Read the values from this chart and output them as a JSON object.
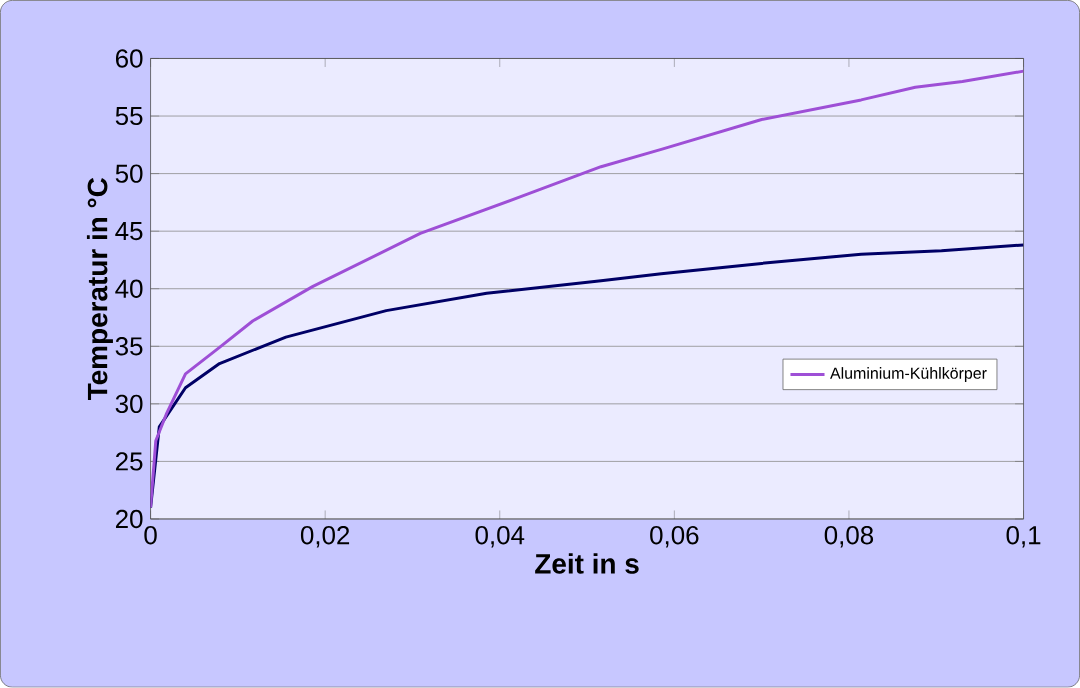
{
  "chart_data": {
    "type": "line",
    "xlabel": "Zeit in s",
    "ylabel": "Temperatur in °C",
    "xlim": [
      0,
      0.1
    ],
    "ylim": [
      20,
      60
    ],
    "xticks": [
      0,
      {
        "value": 0.02,
        "label": "0,02"
      },
      {
        "value": 0.04,
        "label": "0,04"
      },
      {
        "value": 0.06,
        "label": "0,06"
      },
      {
        "value": 0.08,
        "label": "0,08"
      },
      {
        "value": 0.1,
        "label": "0,1"
      }
    ],
    "yticks": [
      20,
      25,
      30,
      35,
      40,
      45,
      50,
      55,
      60
    ],
    "grid": "y",
    "legend": "right",
    "marker": "none",
    "line_style": "solid",
    "series": [
      {
        "color": "#000066",
        "x": [
          0,
          0.001,
          0.004,
          0.0079,
          0.0155,
          0.027,
          0.0385,
          0.0516,
          0.0585,
          0.07,
          0.0814,
          0.0906,
          0.1
        ],
        "values": [
          21,
          28,
          31.4,
          33.5,
          35.8,
          38.1,
          39.6,
          40.7,
          41.3,
          42.2,
          43.0,
          43.3,
          43.8
        ]
      },
      {
        "name": "Aluminium-Kühlkörper",
        "color": "#9e4fd6",
        "x": [
          0,
          0.0006,
          0.0018,
          0.004,
          0.0079,
          0.0117,
          0.0186,
          0.0309,
          0.0424,
          0.0516,
          0.0585,
          0.07,
          0.0814,
          0.0876,
          0.093,
          0.1
        ],
        "values": [
          21,
          26.8,
          29.1,
          32.6,
          34.9,
          37.2,
          40.2,
          44.8,
          48.0,
          50.6,
          52.1,
          54.7,
          56.4,
          57.5,
          58.0,
          58.9
        ]
      }
    ]
  }
}
